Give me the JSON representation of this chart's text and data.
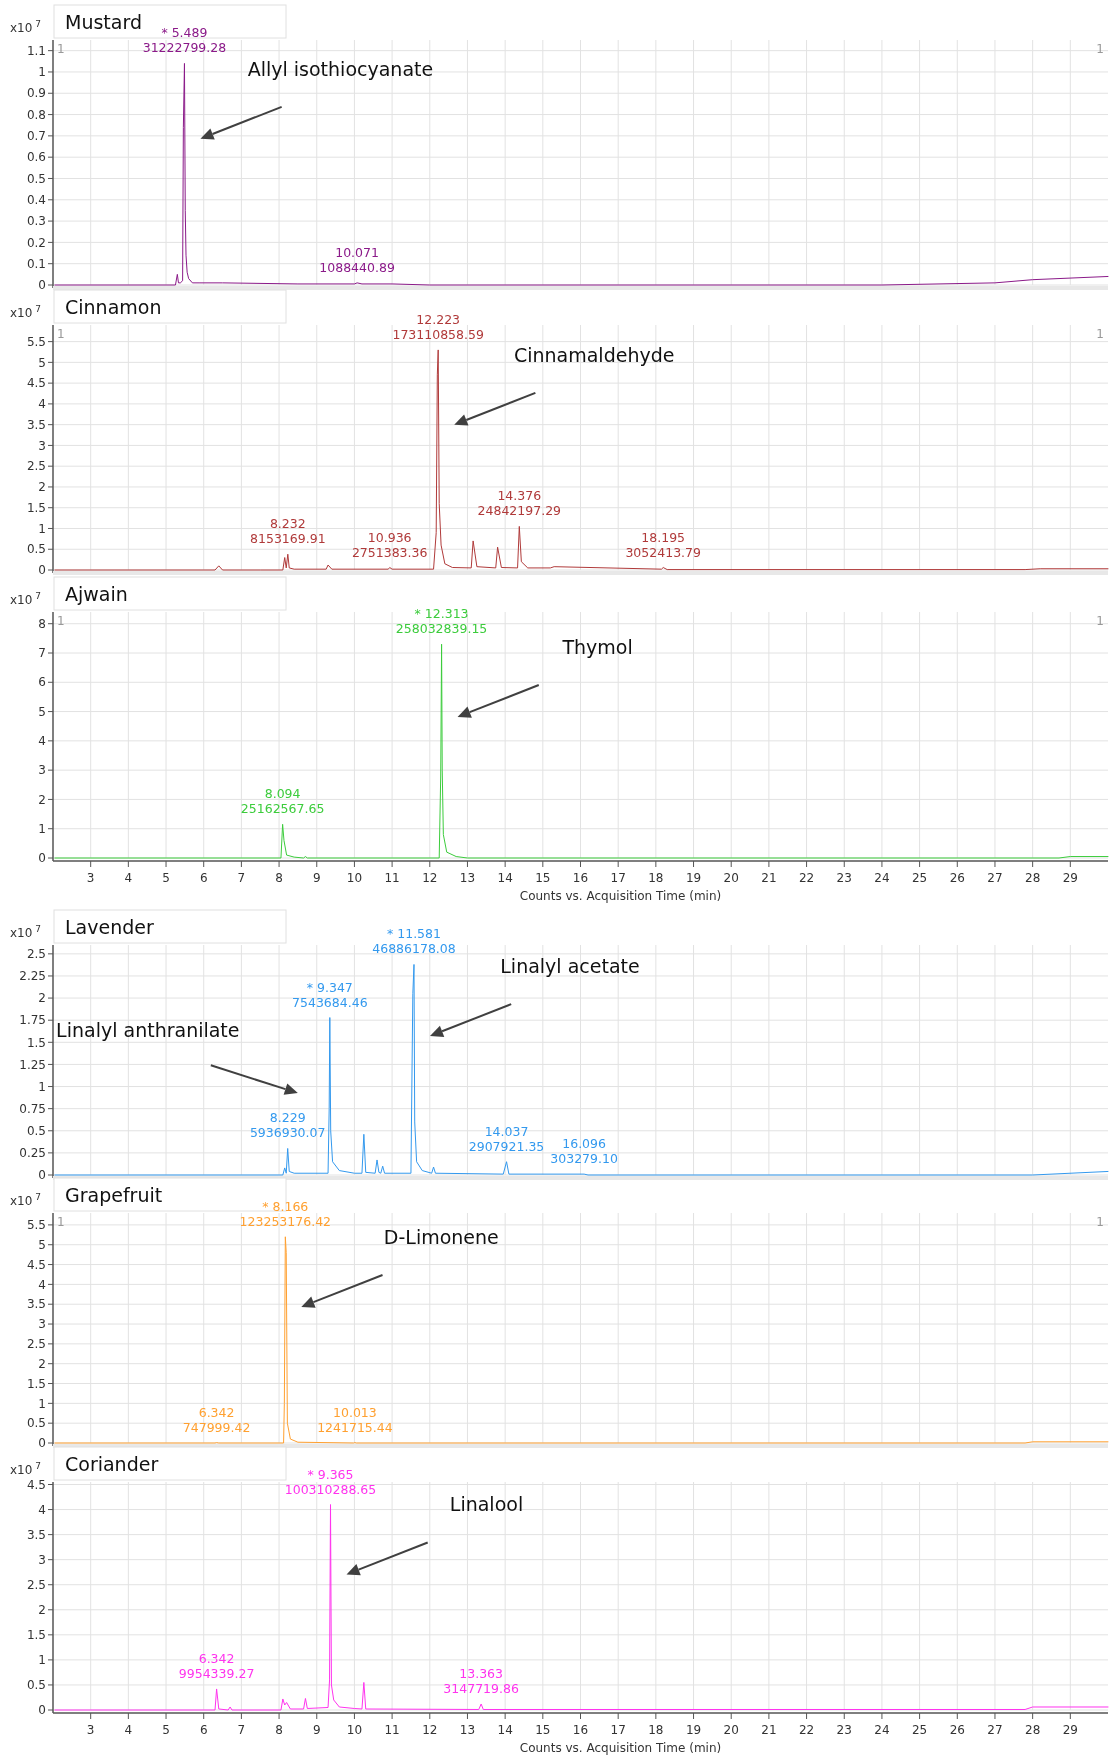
{
  "chart_data": [
    {
      "type": "line",
      "title": "Mustard",
      "ylabel": "x10$^{7}$",
      "xlim": [
        2,
        30
      ],
      "xticks": [
        3,
        4,
        5,
        6,
        7,
        8,
        9,
        10,
        11,
        12,
        13,
        14,
        15,
        16,
        17,
        18,
        19,
        20,
        21,
        22,
        23,
        24,
        25,
        26,
        27,
        28,
        29
      ],
      "ylim": [
        0,
        1.15
      ],
      "yticks": [
        0,
        0.1,
        0.2,
        0.3,
        0.4,
        0.5,
        0.6,
        0.7,
        0.8,
        0.9,
        1,
        1.1
      ],
      "grid": true,
      "tick_labels": "y",
      "series": [
        {
          "color": "#8b1a89",
          "x": [
            2.05,
            5.25,
            5.3,
            5.33,
            5.38,
            5.44,
            5.46,
            5.489,
            5.51,
            5.53,
            5.56,
            5.6,
            5.7,
            5.9,
            6.5,
            8.5,
            10.0,
            10.071,
            10.2,
            11.0,
            12.0,
            24.0,
            27.0,
            28.0,
            30.0
          ],
          "values": [
            0,
            0,
            0.05,
            0.01,
            0.01,
            0.02,
            0.74,
            1.04,
            0.35,
            0.14,
            0.06,
            0.03,
            0.01,
            0.01,
            0.01,
            0.005,
            0.005,
            0.01,
            0.005,
            0.005,
            0,
            0,
            0.01,
            0.025,
            0.04
          ]
        }
      ],
      "annotations": [
        "Allyl isothiocyanate",
        {
          "text": "* 5.489\n31222799.28",
          "x": 5.489,
          "y": 1.04
        },
        {
          "text": "10.071\n1088440.89",
          "x": 10.071,
          "y": 0.01
        },
        "1",
        "1"
      ]
    },
    {
      "type": "line",
      "title": "Cinnamon",
      "ylabel": "x10$^{7}$",
      "xlim": [
        2,
        30
      ],
      "xticks": [
        3,
        4,
        5,
        6,
        7,
        8,
        9,
        10,
        11,
        12,
        13,
        14,
        15,
        16,
        17,
        18,
        19,
        20,
        21,
        22,
        23,
        24,
        25,
        26,
        27,
        28,
        29
      ],
      "ylim": [
        0,
        5.9
      ],
      "yticks": [
        0,
        0.5,
        1,
        1.5,
        2,
        2.5,
        3,
        3.5,
        4,
        4.5,
        5,
        5.5
      ],
      "grid": true,
      "tick_labels": "y",
      "series": [
        {
          "color": "#b03a3a",
          "x": [
            2.05,
            6.3,
            6.4,
            6.5,
            7.5,
            8.1,
            8.15,
            8.19,
            8.232,
            8.27,
            8.4,
            9.25,
            9.3,
            9.4,
            10.9,
            10.936,
            11.0,
            12.1,
            12.17,
            12.2,
            12.223,
            12.25,
            12.3,
            12.4,
            12.6,
            13.1,
            13.15,
            13.25,
            13.75,
            13.8,
            13.9,
            14.33,
            14.376,
            14.43,
            14.6,
            15.2,
            15.3,
            18.15,
            18.195,
            18.3,
            27.8,
            28.2,
            30.0
          ],
          "values": [
            0,
            0,
            0.1,
            0,
            0,
            0,
            0.3,
            0.05,
            0.38,
            0.05,
            0.02,
            0.02,
            0.12,
            0.02,
            0.02,
            0.06,
            0.02,
            0.02,
            0.9,
            4.7,
            5.3,
            1.6,
            0.6,
            0.15,
            0.06,
            0.05,
            0.7,
            0.08,
            0.05,
            0.55,
            0.06,
            0.05,
            1.05,
            0.2,
            0.05,
            0.05,
            0.08,
            0.02,
            0.06,
            0.01,
            0.01,
            0.03,
            0.03
          ]
        }
      ],
      "annotations": [
        "Cinnamaldehyde",
        {
          "text": "12.223\n173110858.59",
          "x": 12.223,
          "y": 5.3
        },
        {
          "text": "8.232\n8153169.91",
          "x": 8.232,
          "y": 0.38
        },
        {
          "text": "10.936\n2751383.36",
          "x": 10.936,
          "y": 0.06
        },
        {
          "text": "14.376\n24842197.29",
          "x": 14.376,
          "y": 1.05
        },
        {
          "text": "18.195\n3052413.79",
          "x": 18.195,
          "y": 0.06
        },
        "1",
        "1"
      ]
    },
    {
      "type": "line",
      "title": "Ajwain",
      "ylabel": "x10$^{7}$",
      "xlabel": "Counts vs. Acquisition Time (min)",
      "xlim": [
        2,
        30
      ],
      "xticks": [
        3,
        4,
        5,
        6,
        7,
        8,
        9,
        10,
        11,
        12,
        13,
        14,
        15,
        16,
        17,
        18,
        19,
        20,
        21,
        22,
        23,
        24,
        25,
        26,
        27,
        28,
        29
      ],
      "ylim": [
        0,
        8.4
      ],
      "yticks": [
        0,
        1,
        2,
        3,
        4,
        5,
        6,
        7,
        8
      ],
      "grid": true,
      "series": [
        {
          "color": "#3ccc3c",
          "x": [
            2.05,
            8.05,
            8.094,
            8.13,
            8.2,
            8.4,
            8.65,
            8.7,
            8.75,
            12.25,
            12.29,
            12.313,
            12.33,
            12.36,
            12.45,
            12.7,
            13.0,
            28.7,
            29.0,
            30.0
          ],
          "values": [
            0,
            0,
            1.15,
            0.6,
            0.1,
            0.03,
            0,
            0.05,
            0,
            0,
            2.8,
            7.3,
            3.0,
            0.8,
            0.2,
            0.05,
            0,
            0,
            0.05,
            0.05
          ]
        }
      ],
      "annotations": [
        "Thymol",
        {
          "text": "* 12.313\n258032839.15",
          "x": 12.313,
          "y": 7.3
        },
        {
          "text": "8.094\n25162567.65",
          "x": 8.094,
          "y": 1.15
        },
        "1",
        "1"
      ]
    },
    {
      "type": "line",
      "title": "Lavender",
      "ylabel": "x10$^{7}$",
      "xlim": [
        2,
        30
      ],
      "xticks": [
        3,
        4,
        5,
        6,
        7,
        8,
        9,
        10,
        11,
        12,
        13,
        14,
        15,
        16,
        17,
        18,
        19,
        20,
        21,
        22,
        23,
        24,
        25,
        26,
        27,
        28,
        29
      ],
      "ylim": [
        0,
        2.6
      ],
      "yticks": [
        0,
        0.25,
        0.5,
        0.75,
        1,
        1.25,
        1.5,
        1.75,
        2,
        2.25,
        2.5
      ],
      "grid": true,
      "tick_labels": "y",
      "series": [
        {
          "color": "#3399ee",
          "x": [
            2.05,
            8.1,
            8.15,
            8.19,
            8.229,
            8.27,
            8.4,
            9.3,
            9.33,
            9.347,
            9.37,
            9.42,
            9.6,
            10.0,
            10.2,
            10.25,
            10.3,
            10.55,
            10.6,
            10.65,
            10.7,
            10.75,
            10.8,
            11.5,
            11.55,
            11.581,
            11.6,
            11.65,
            11.8,
            12.05,
            12.1,
            12.15,
            13.95,
            14.037,
            14.1,
            16.096,
            16.2,
            28.0,
            30.0
          ],
          "values": [
            0,
            0,
            0.08,
            0.02,
            0.3,
            0.04,
            0.02,
            0.02,
            0.75,
            1.78,
            0.5,
            0.15,
            0.05,
            0.02,
            0.02,
            0.46,
            0.03,
            0.02,
            0.17,
            0.03,
            0.02,
            0.1,
            0.02,
            0.02,
            2.05,
            2.38,
            0.6,
            0.15,
            0.05,
            0.02,
            0.09,
            0.02,
            0.01,
            0.15,
            0.01,
            0.01,
            0,
            0,
            0.04
          ]
        }
      ],
      "annotations": [
        "Linalyl acetate",
        "Linalyl anthranilate",
        {
          "text": "* 11.581\n46886178.08",
          "x": 11.581,
          "y": 2.38
        },
        {
          "text": "* 9.347\n7543684.46",
          "x": 9.347,
          "y": 1.78
        },
        {
          "text": "8.229\n5936930.07",
          "x": 8.229,
          "y": 0.3
        },
        {
          "text": "14.037\n2907921.35",
          "x": 14.037,
          "y": 0.15
        },
        {
          "text": "16.096\n303279.10",
          "x": 16.096,
          "y": 0.01
        }
      ]
    },
    {
      "type": "line",
      "title": "Grapefruit",
      "ylabel": "x10$^{7}$",
      "xlim": [
        2,
        30
      ],
      "xticks": [
        3,
        4,
        5,
        6,
        7,
        8,
        9,
        10,
        11,
        12,
        13,
        14,
        15,
        16,
        17,
        18,
        19,
        20,
        21,
        22,
        23,
        24,
        25,
        26,
        27,
        28,
        29
      ],
      "ylim": [
        0,
        5.8
      ],
      "yticks": [
        0,
        0.5,
        1,
        1.5,
        2,
        2.5,
        3,
        3.5,
        4,
        4.5,
        5,
        5.5
      ],
      "grid": true,
      "tick_labels": "y",
      "series": [
        {
          "color": "#ffa030",
          "x": [
            2.05,
            6.3,
            6.342,
            6.4,
            8.12,
            8.14,
            8.166,
            8.19,
            8.22,
            8.3,
            8.5,
            9.98,
            10.013,
            10.05,
            27.8,
            28.0,
            30.0
          ],
          "values": [
            0,
            0,
            0.01,
            0,
            0,
            1.0,
            5.2,
            4.8,
            0.5,
            0.1,
            0.02,
            0,
            0.01,
            0,
            0,
            0.03,
            0.03
          ]
        }
      ],
      "annotations": [
        "D-Limonene",
        {
          "text": "* 8.166\n123253176.42",
          "x": 8.166,
          "y": 5.2
        },
        {
          "text": "6.342\n747999.42",
          "x": 6.342,
          "y": 0.01
        },
        {
          "text": "10.013\n1241715.44",
          "x": 10.013,
          "y": 0.01
        },
        "1",
        "1"
      ]
    },
    {
      "type": "line",
      "title": "Coriander",
      "ylabel": "x10$^{7}$",
      "xlabel": "Counts vs. Acquisition Time (min)",
      "xlim": [
        2,
        30
      ],
      "xticks": [
        3,
        4,
        5,
        6,
        7,
        8,
        9,
        10,
        11,
        12,
        13,
        14,
        15,
        16,
        17,
        18,
        19,
        20,
        21,
        22,
        23,
        24,
        25,
        26,
        27,
        28,
        29
      ],
      "ylim": [
        0,
        4.55
      ],
      "yticks": [
        0,
        0.5,
        1,
        1.5,
        2,
        2.5,
        3,
        3.5,
        4,
        4.5
      ],
      "grid": true,
      "series": [
        {
          "color": "#ff33ee",
          "x": [
            2.05,
            6.3,
            6.342,
            6.4,
            6.65,
            6.7,
            6.75,
            8.05,
            8.1,
            8.15,
            8.2,
            8.3,
            8.65,
            8.7,
            8.75,
            9.3,
            9.34,
            9.365,
            9.39,
            9.45,
            9.6,
            10.0,
            10.2,
            10.25,
            10.3,
            13.3,
            13.363,
            13.42,
            27.8,
            28.0,
            30.0
          ],
          "values": [
            0,
            0,
            0.42,
            0.02,
            0,
            0.06,
            0,
            0,
            0.22,
            0.1,
            0.15,
            0.02,
            0.02,
            0.23,
            0.03,
            0.05,
            0.6,
            4.1,
            0.5,
            0.2,
            0.06,
            0.03,
            0.02,
            0.55,
            0.02,
            0.01,
            0.12,
            0.01,
            0.01,
            0.06,
            0.06
          ]
        }
      ],
      "annotations": [
        "Linalool",
        {
          "text": "* 9.365\n100310288.65",
          "x": 9.365,
          "y": 4.1
        },
        {
          "text": "6.342\n9954339.27",
          "x": 6.342,
          "y": 0.42
        },
        {
          "text": "13.363\n3147719.86",
          "x": 13.363,
          "y": 0.12
        }
      ]
    }
  ]
}
